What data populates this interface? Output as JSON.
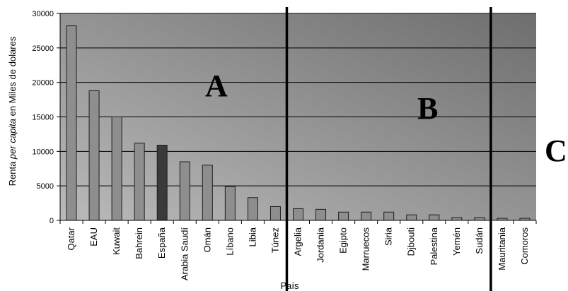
{
  "chart_data": {
    "type": "bar",
    "categories": [
      "Qatar",
      "EAU",
      "Kuwait",
      "Bahrein",
      "España",
      "Arabia Saudí",
      "Omán",
      "Líbano",
      "Libia",
      "Túnez",
      "Argelia",
      "Jordania",
      "Egipto",
      "Marruecos",
      "Siria",
      "Djbouti",
      "Palestina",
      "Yemén",
      "Sudán",
      "Mauritania",
      "Comoros"
    ],
    "values": [
      28200,
      18800,
      15000,
      11200,
      10900,
      8500,
      8000,
      4900,
      3300,
      2000,
      1700,
      1600,
      1200,
      1200,
      1200,
      800,
      800,
      400,
      400,
      300,
      300
    ],
    "highlight": "España",
    "xlabel": "País",
    "ylabel_parts": [
      "Renta ",
      "per capita",
      " en Miles de dolares"
    ],
    "ylim": [
      0,
      30000
    ],
    "yticks": [
      0,
      5000,
      10000,
      15000,
      20000,
      25000,
      30000
    ],
    "grid": true,
    "dividers_after": [
      "Túnez",
      "Sudán"
    ],
    "zone_labels": [
      "A",
      "B",
      "C"
    ],
    "colors": {
      "bar": "#8e8e8e",
      "bar_highlight": "#3a3a3a",
      "bar_stroke": "#1e1e1e",
      "bg_light": "#bababa",
      "bg_dark": "#6e6e6e",
      "grid": "#000000",
      "divider": "#000000"
    }
  }
}
